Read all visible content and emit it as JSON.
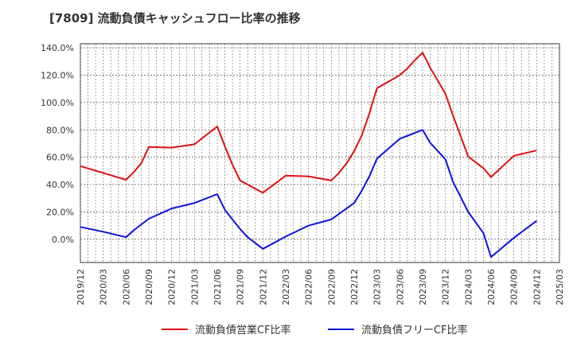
{
  "title": "[7809]  流動負債キャッシュフロー比率の推移",
  "chart_data": {
    "type": "line",
    "title": "[7809]  流動負債キャッシュフロー比率の推移",
    "xlabel": "",
    "ylabel": "",
    "x_tick_labels": [
      "2019/12",
      "2020/03",
      "2020/06",
      "2020/09",
      "2020/12",
      "2021/03",
      "2021/06",
      "2021/09",
      "2021/12",
      "2022/03",
      "2022/06",
      "2022/09",
      "2022/12",
      "2023/03",
      "2023/06",
      "2023/09",
      "2023/12",
      "2024/03",
      "2024/06",
      "2024/09",
      "2024/12",
      "2025/03"
    ],
    "y_tick_labels": [
      "140.0%",
      "120.0%",
      "100.0%",
      "80.0%",
      "60.0%",
      "40.0%",
      "20.0%",
      "0.0%"
    ],
    "ylim": [
      -17,
      143
    ],
    "grid": true,
    "legend_position": "bottom",
    "series": [
      {
        "name": "流動負債営業CF比率",
        "color": "#dd1111",
        "points": [
          [
            "2019/12",
            53.5
          ],
          [
            "2020/03",
            48.5
          ],
          [
            "2020/06",
            43.5
          ],
          [
            "2020/07",
            49.0
          ],
          [
            "2020/08",
            55.5
          ],
          [
            "2020/09",
            67.5
          ],
          [
            "2020/12",
            67.0
          ],
          [
            "2021/03",
            69.5
          ],
          [
            "2021/06",
            82.5
          ],
          [
            "2021/07",
            68.0
          ],
          [
            "2021/08",
            54.5
          ],
          [
            "2021/09",
            43.0
          ],
          [
            "2021/12",
            34.0
          ],
          [
            "2022/03",
            46.5
          ],
          [
            "2022/06",
            46.0
          ],
          [
            "2022/09",
            43.0
          ],
          [
            "2022/10",
            48.5
          ],
          [
            "2022/11",
            55.5
          ],
          [
            "2022/12",
            64.5
          ],
          [
            "2023/01",
            76.0
          ],
          [
            "2023/02",
            92.0
          ],
          [
            "2023/03",
            110.5
          ],
          [
            "2023/06",
            120.0
          ],
          [
            "2023/07",
            125.0
          ],
          [
            "2023/08",
            131.0
          ],
          [
            "2023/09",
            136.5
          ],
          [
            "2023/10",
            125.5
          ],
          [
            "2023/12",
            106.5
          ],
          [
            "2024/01",
            90.5
          ],
          [
            "2024/03",
            60.5
          ],
          [
            "2024/05",
            52.0
          ],
          [
            "2024/06",
            45.5
          ],
          [
            "2024/09",
            61.0
          ],
          [
            "2024/12",
            65.0
          ]
        ]
      },
      {
        "name": "流動負債フリーCF比率",
        "color": "#1111dd",
        "points": [
          [
            "2019/12",
            9.0
          ],
          [
            "2020/03",
            5.5
          ],
          [
            "2020/06",
            1.5
          ],
          [
            "2020/07",
            6.5
          ],
          [
            "2020/09",
            15.0
          ],
          [
            "2020/12",
            22.5
          ],
          [
            "2021/03",
            26.5
          ],
          [
            "2021/06",
            33.0
          ],
          [
            "2021/07",
            21.5
          ],
          [
            "2021/08",
            14.5
          ],
          [
            "2021/09",
            7.5
          ],
          [
            "2021/10",
            1.5
          ],
          [
            "2021/12",
            -7.0
          ],
          [
            "2022/03",
            2.0
          ],
          [
            "2022/06",
            10.0
          ],
          [
            "2022/09",
            14.5
          ],
          [
            "2022/12",
            26.5
          ],
          [
            "2023/01",
            35.5
          ],
          [
            "2023/02",
            46.0
          ],
          [
            "2023/03",
            59.0
          ],
          [
            "2023/06",
            73.5
          ],
          [
            "2023/09",
            80.0
          ],
          [
            "2023/10",
            70.5
          ],
          [
            "2023/12",
            58.5
          ],
          [
            "2024/01",
            42.0
          ],
          [
            "2024/03",
            20.0
          ],
          [
            "2024/05",
            4.5
          ],
          [
            "2024/06",
            -13.0
          ],
          [
            "2024/09",
            1.0
          ],
          [
            "2024/12",
            13.5
          ]
        ]
      }
    ]
  }
}
